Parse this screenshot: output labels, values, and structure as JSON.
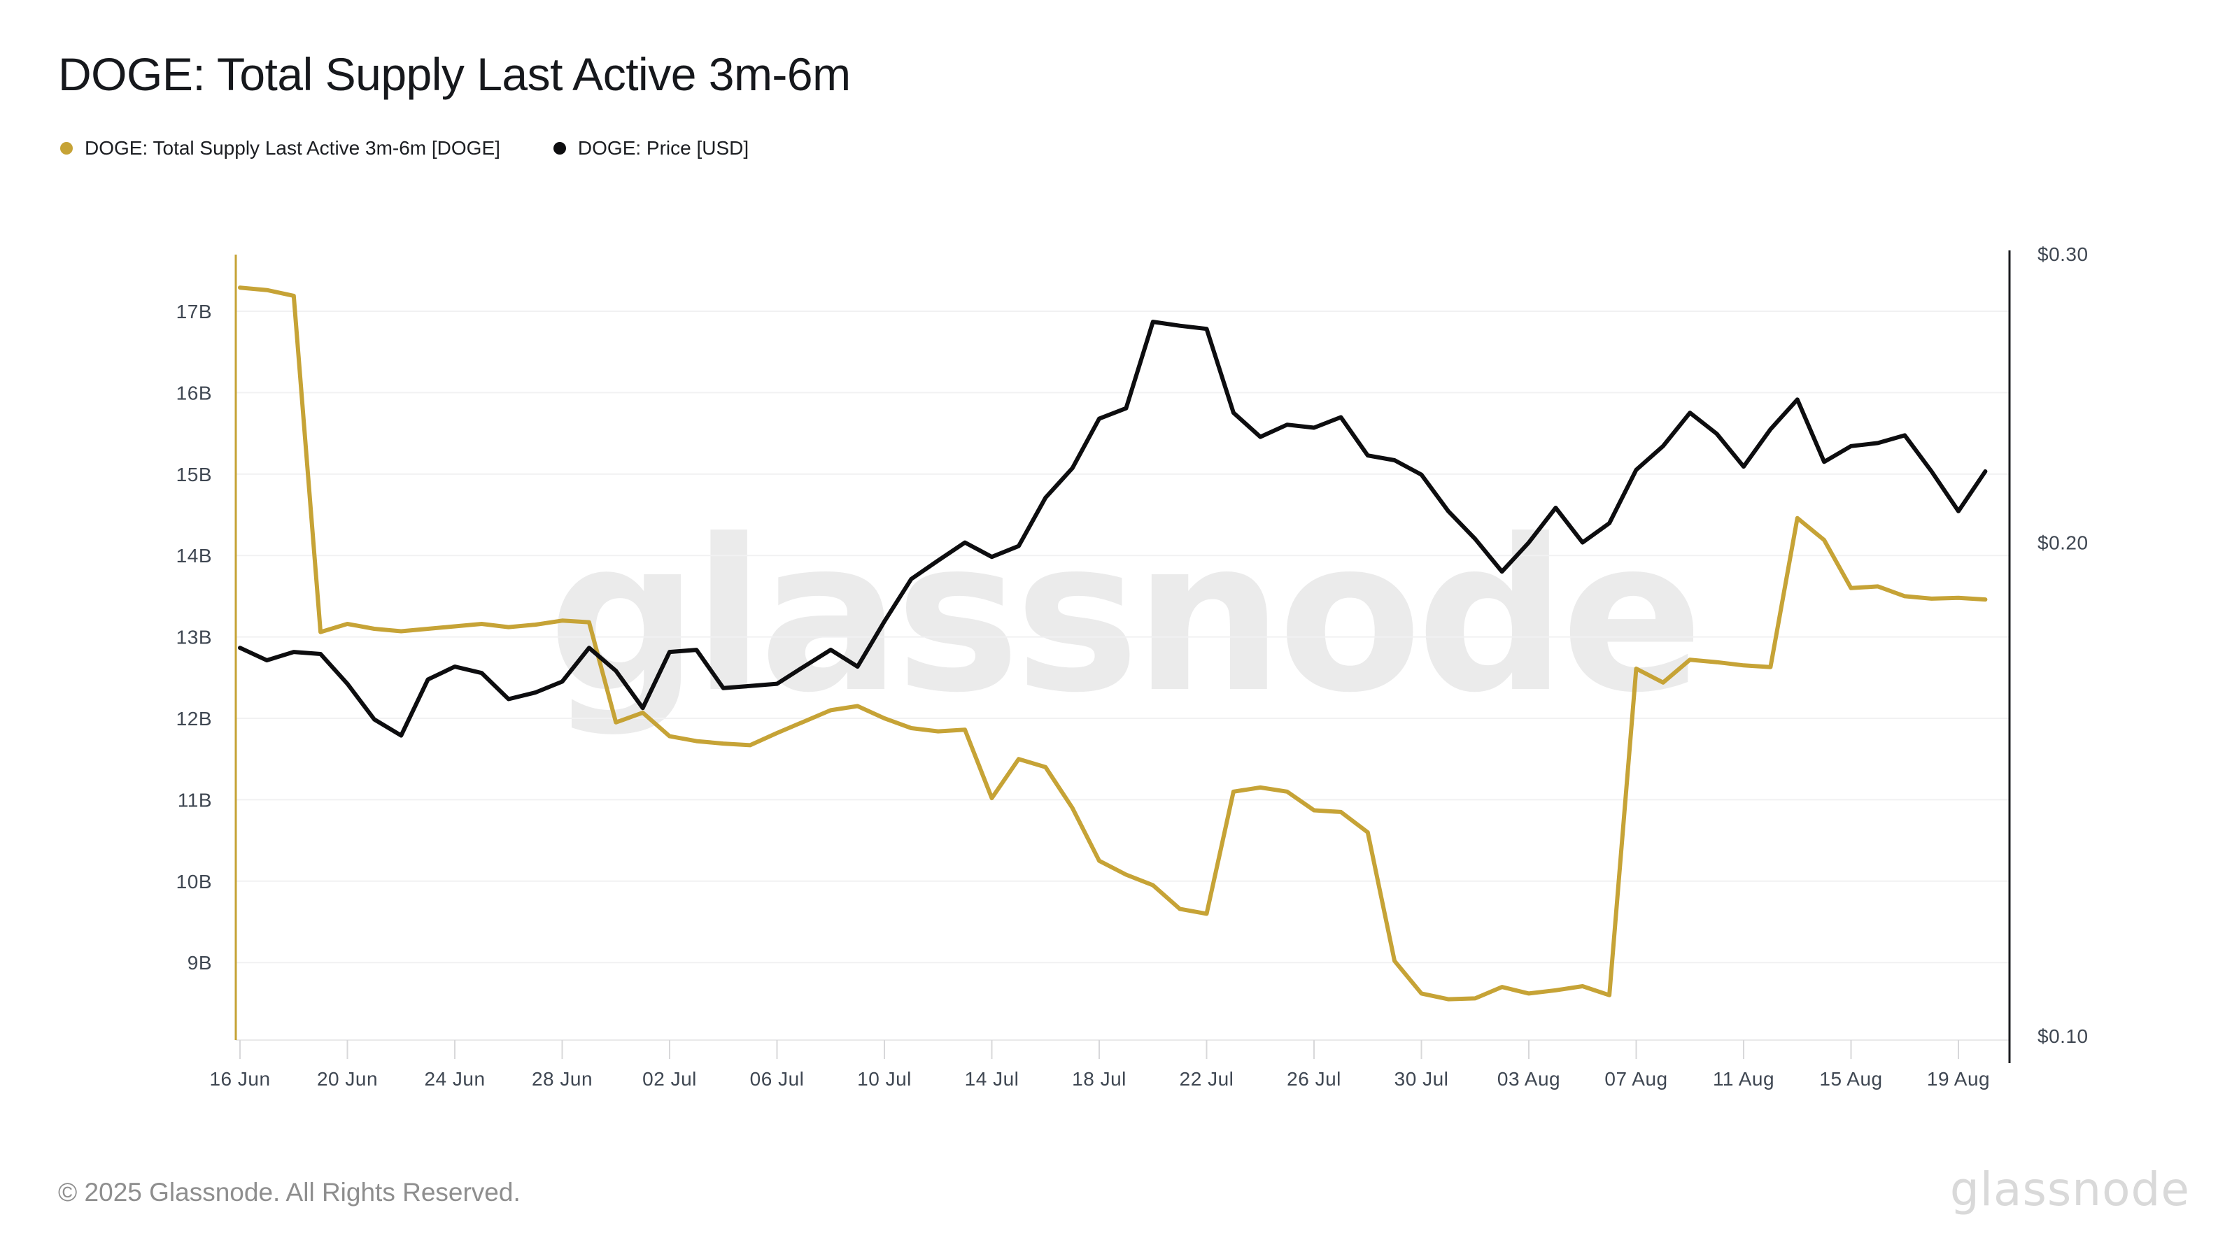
{
  "header": {
    "title": "DOGE: Total Supply Last Active 3m-6m",
    "legend": [
      {
        "label": "DOGE: Total Supply Last Active 3m-6m [DOGE]",
        "color": "#c6a336"
      },
      {
        "label": "DOGE: Price [USD]",
        "color": "#0d0d0f"
      }
    ]
  },
  "watermark": "glassnode",
  "footer": {
    "copyright": "© 2025 Glassnode. All Rights Reserved.",
    "brand": "glassnode"
  },
  "chart_data": {
    "type": "line",
    "title": "DOGE: Total Supply Last Active 3m-6m",
    "grid": "horizontal",
    "legend_position": "top-left",
    "x_tick_labels": [
      "16 Jun",
      "20 Jun",
      "24 Jun",
      "28 Jun",
      "02 Jul",
      "06 Jul",
      "10 Jul",
      "14 Jul",
      "18 Jul",
      "22 Jul",
      "26 Jul",
      "30 Jul",
      "03 Aug",
      "07 Aug",
      "11 Aug",
      "15 Aug",
      "19 Aug"
    ],
    "dates": [
      "16 Jun",
      "17 Jun",
      "18 Jun",
      "19 Jun",
      "20 Jun",
      "21 Jun",
      "22 Jun",
      "23 Jun",
      "24 Jun",
      "25 Jun",
      "26 Jun",
      "27 Jun",
      "28 Jun",
      "29 Jun",
      "30 Jun",
      "01 Jul",
      "02 Jul",
      "03 Jul",
      "04 Jul",
      "05 Jul",
      "06 Jul",
      "07 Jul",
      "08 Jul",
      "09 Jul",
      "10 Jul",
      "11 Jul",
      "12 Jul",
      "13 Jul",
      "14 Jul",
      "15 Jul",
      "16 Jul",
      "17 Jul",
      "18 Jul",
      "19 Jul",
      "20 Jul",
      "21 Jul",
      "22 Jul",
      "23 Jul",
      "24 Jul",
      "25 Jul",
      "26 Jul",
      "27 Jul",
      "28 Jul",
      "29 Jul",
      "30 Jul",
      "31 Jul",
      "01 Aug",
      "02 Aug",
      "03 Aug",
      "04 Aug",
      "05 Aug",
      "06 Aug",
      "07 Aug",
      "08 Aug",
      "09 Aug",
      "10 Aug",
      "11 Aug",
      "12 Aug",
      "13 Aug",
      "14 Aug",
      "15 Aug",
      "16 Aug",
      "17 Aug",
      "18 Aug",
      "19 Aug",
      "20 Aug"
    ],
    "left_axis": {
      "scale": "linear",
      "unit": "B",
      "min": 9,
      "max": 17,
      "tick_labels": [
        "17B",
        "16B",
        "15B",
        "14B",
        "13B",
        "12B",
        "11B",
        "10B",
        "9B"
      ],
      "tick_values": [
        17,
        16,
        15,
        14,
        13,
        12,
        11,
        10,
        9
      ]
    },
    "right_axis": {
      "scale": "log",
      "unit": "USD",
      "min": 0.1,
      "max": 0.3,
      "tick_labels": [
        "$0.30",
        "$0.20",
        "$0.10"
      ],
      "tick_values": [
        0.3,
        0.2,
        0.1
      ]
    },
    "series": [
      {
        "name": "DOGE: Total Supply Last Active 3m-6m [DOGE]",
        "axis": "left",
        "unit": "B",
        "color": "#c6a336",
        "values": [
          17.29,
          17.26,
          17.19,
          13.06,
          13.16,
          13.1,
          13.07,
          13.1,
          13.13,
          13.16,
          13.12,
          13.15,
          13.2,
          13.18,
          11.95,
          12.07,
          11.78,
          11.72,
          11.69,
          11.67,
          11.82,
          11.96,
          12.1,
          12.15,
          12.0,
          11.88,
          11.84,
          11.86,
          11.02,
          11.5,
          11.4,
          10.9,
          10.25,
          10.08,
          9.95,
          9.66,
          9.6,
          11.1,
          11.15,
          11.1,
          10.87,
          10.85,
          10.6,
          9.02,
          8.62,
          8.55,
          8.56,
          8.7,
          8.62,
          8.66,
          8.71,
          8.6,
          12.61,
          12.44,
          12.72,
          12.69,
          12.65,
          12.63,
          14.46,
          14.19,
          13.6,
          13.62,
          13.5,
          13.47,
          13.48,
          13.46
        ]
      },
      {
        "name": "DOGE: Price [USD]",
        "axis": "right",
        "unit": "USD",
        "color": "#0d0d0f",
        "values": [
          0.1725,
          0.1695,
          0.1715,
          0.171,
          0.164,
          0.156,
          0.1525,
          0.165,
          0.168,
          0.1665,
          0.1605,
          0.162,
          0.1645,
          0.1725,
          0.167,
          0.1585,
          0.1715,
          0.172,
          0.163,
          0.1635,
          0.164,
          0.168,
          0.172,
          0.168,
          0.179,
          0.19,
          0.195,
          0.2,
          0.196,
          0.199,
          0.213,
          0.222,
          0.238,
          0.2415,
          0.2727,
          0.2712,
          0.27,
          0.24,
          0.232,
          0.236,
          0.235,
          0.2385,
          0.226,
          0.2245,
          0.22,
          0.209,
          0.201,
          0.192,
          0.2,
          0.21,
          0.2,
          0.2055,
          0.2215,
          0.229,
          0.24,
          0.233,
          0.2225,
          0.2345,
          0.2445,
          0.224,
          0.229,
          0.23,
          0.2325,
          0.221,
          0.209,
          0.221
        ]
      }
    ]
  }
}
